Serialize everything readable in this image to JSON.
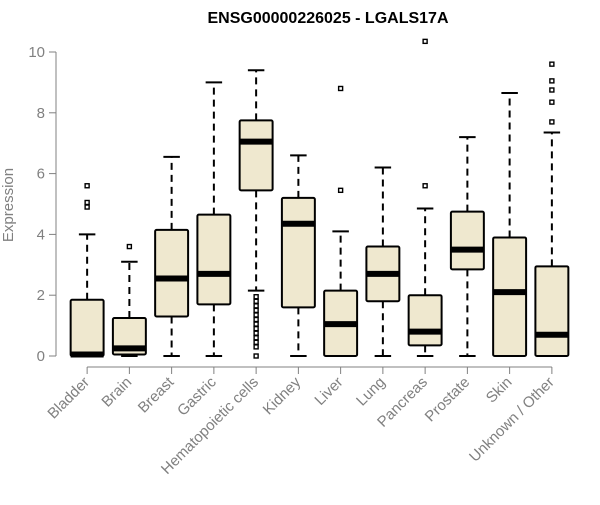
{
  "chart_data": {
    "type": "boxplot",
    "title": "ENSG00000226025 - LGALS17A",
    "xlabel": "",
    "ylabel": "Expression",
    "ylim": [
      0,
      10
    ],
    "yticks": [
      0,
      2,
      4,
      6,
      8,
      10
    ],
    "grid": false,
    "colors": {
      "box_fill": "#efe8cf",
      "stroke": "#000000",
      "axis_text": "#808080",
      "axis_line": "#808080"
    },
    "categories": [
      "Bladder",
      "Brain",
      "Breast",
      "Gastric",
      "Hematopoietic cells",
      "Kidney",
      "Liver",
      "Lung",
      "Pancreas",
      "Prostate",
      "Skin",
      "Unknown / Other"
    ],
    "boxes": [
      {
        "name": "Bladder",
        "whisker_low": 0,
        "q1": 0,
        "median": 0.05,
        "q3": 1.85,
        "whisker_high": 4.0,
        "outliers": [
          4.9,
          5.05,
          5.6
        ]
      },
      {
        "name": "Brain",
        "whisker_low": 0,
        "q1": 0.05,
        "median": 0.25,
        "q3": 1.25,
        "whisker_high": 3.1,
        "outliers": [
          3.6
        ]
      },
      {
        "name": "Breast",
        "whisker_low": 0,
        "q1": 1.3,
        "median": 2.55,
        "q3": 4.15,
        "whisker_high": 6.55,
        "outliers": []
      },
      {
        "name": "Gastric",
        "whisker_low": 0,
        "q1": 1.7,
        "median": 2.7,
        "q3": 4.65,
        "whisker_high": 9.0,
        "outliers": []
      },
      {
        "name": "Hematopoietic cells",
        "whisker_low": 2.15,
        "q1": 5.45,
        "median": 7.05,
        "q3": 7.75,
        "whisker_high": 9.4,
        "outliers": [
          0.0,
          0.3,
          0.45,
          0.6,
          0.75,
          0.9,
          1.05,
          1.2,
          1.35,
          1.5,
          1.65,
          1.8,
          1.95
        ]
      },
      {
        "name": "Kidney",
        "whisker_low": 0,
        "q1": 1.6,
        "median": 4.35,
        "q3": 5.2,
        "whisker_high": 6.6,
        "outliers": []
      },
      {
        "name": "Liver",
        "whisker_low": 0,
        "q1": 0,
        "median": 1.05,
        "q3": 2.15,
        "whisker_high": 4.1,
        "outliers": [
          5.45,
          8.8
        ]
      },
      {
        "name": "Lung",
        "whisker_low": 0,
        "q1": 1.8,
        "median": 2.7,
        "q3": 3.6,
        "whisker_high": 6.2,
        "outliers": []
      },
      {
        "name": "Pancreas",
        "whisker_low": 0,
        "q1": 0.35,
        "median": 0.8,
        "q3": 2.0,
        "whisker_high": 4.85,
        "outliers": [
          5.6,
          10.35
        ]
      },
      {
        "name": "Prostate",
        "whisker_low": 0,
        "q1": 2.85,
        "median": 3.5,
        "q3": 4.75,
        "whisker_high": 7.2,
        "outliers": []
      },
      {
        "name": "Skin",
        "whisker_low": 0,
        "q1": 0,
        "median": 2.1,
        "q3": 3.9,
        "whisker_high": 8.65,
        "outliers": []
      },
      {
        "name": "Unknown / Other",
        "whisker_low": 0,
        "q1": 0,
        "median": 0.7,
        "q3": 2.95,
        "whisker_high": 7.35,
        "outliers": [
          7.7,
          8.35,
          8.75,
          9.05,
          9.6
        ]
      }
    ]
  }
}
